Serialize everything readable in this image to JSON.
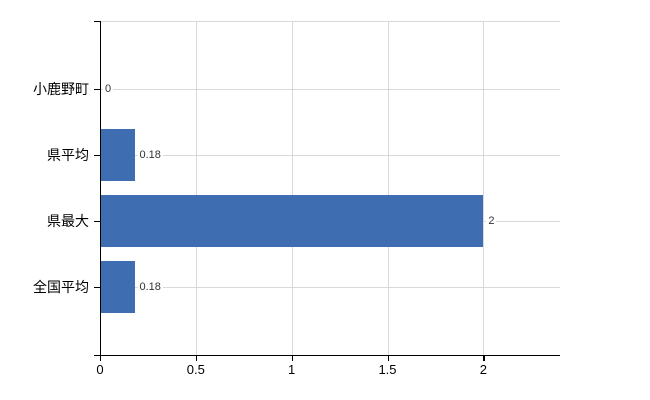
{
  "chart_data": {
    "type": "bar",
    "orientation": "horizontal",
    "title": "",
    "xlabel": "",
    "ylabel": "",
    "categories": [
      "小鹿野町",
      "県平均",
      "県最大",
      "全国平均"
    ],
    "values": [
      0,
      0.18,
      2,
      0.18
    ],
    "data_labels": [
      "0",
      "0.18",
      "2",
      "0.18"
    ],
    "x_ticks": [
      0,
      0.5,
      1,
      1.5,
      2
    ],
    "x_tick_labels": [
      "0",
      "0.5",
      "1",
      "1.5",
      "2"
    ],
    "xlim": [
      0,
      2.4
    ],
    "grid": true,
    "legend": false,
    "colors": {
      "bar": "#3e6db2",
      "grid": "#d9d9d9",
      "axis": "#000000",
      "text": "#000000",
      "data_label": "#333333",
      "background": "#ffffff"
    }
  }
}
